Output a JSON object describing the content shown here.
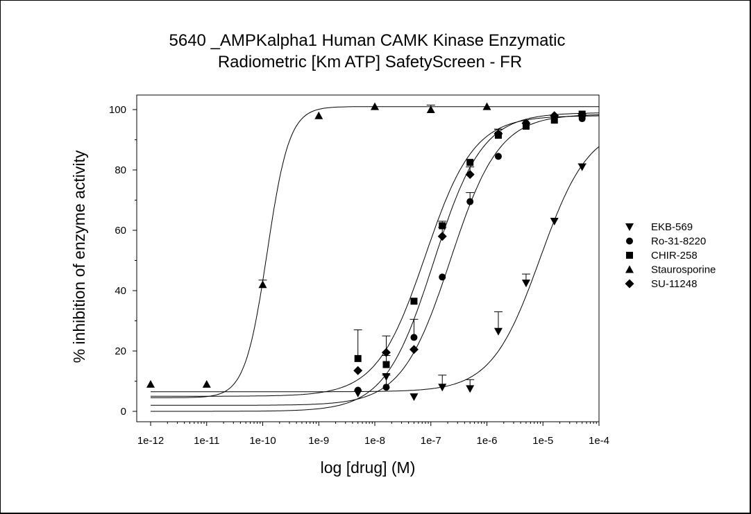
{
  "chart_data": {
    "type": "scatter",
    "title_lines": [
      "5640 _AMPKalpha1 Human CAMK Kinase Enzymatic",
      "Radiometric [Km ATP] SafetyScreen - FR"
    ],
    "xlabel": "log [drug] (M)",
    "ylabel": "% inhibition of enzyme activity",
    "x_scale": "log",
    "xlim": [
      1e-12,
      0.0001
    ],
    "ylim": [
      -3,
      105
    ],
    "x_ticks": [
      1e-12,
      1e-11,
      1e-10,
      1e-09,
      1e-08,
      1e-07,
      1e-06,
      1e-05,
      0.0001
    ],
    "x_tick_labels": [
      "1e-12",
      "1e-11",
      "1e-10",
      "1e-9",
      "1e-8",
      "1e-7",
      "1e-6",
      "1e-5",
      "1e-4"
    ],
    "y_ticks": [
      0,
      20,
      40,
      60,
      80,
      100
    ],
    "y_tick_labels": [
      "0",
      "20",
      "40",
      "60",
      "80",
      "100"
    ],
    "grid": false,
    "legend_position": "right",
    "series": [
      {
        "name": "EKB-569",
        "marker": "triangle-down",
        "points": [
          {
            "x": 5e-09,
            "y": 6,
            "err": 0
          },
          {
            "x": 1.6e-08,
            "y": 11.5,
            "err": 0
          },
          {
            "x": 5e-08,
            "y": 4.8,
            "err": 0
          },
          {
            "x": 1.6e-07,
            "y": 8,
            "err": 4
          },
          {
            "x": 5e-07,
            "y": 7.5,
            "err": 3
          },
          {
            "x": 1.6e-06,
            "y": 26.5,
            "err": 6.5
          },
          {
            "x": 5e-06,
            "y": 42.5,
            "err": 3
          },
          {
            "x": 1.6e-05,
            "y": 63,
            "err": 0
          },
          {
            "x": 5e-05,
            "y": 81,
            "err": 1
          }
        ],
        "fit": {
          "bottom": 6.5,
          "top": 95,
          "log_ec50": -5.05,
          "hill": 1.0
        }
      },
      {
        "name": "Ro-31-8220",
        "marker": "circle",
        "points": [
          {
            "x": 5e-09,
            "y": 7,
            "err": 0
          },
          {
            "x": 1.6e-08,
            "y": 8,
            "err": 4
          },
          {
            "x": 5e-08,
            "y": 24.5,
            "err": 6
          },
          {
            "x": 1.6e-07,
            "y": 44.5,
            "err": 0
          },
          {
            "x": 5e-07,
            "y": 69.5,
            "err": 3
          },
          {
            "x": 1.6e-06,
            "y": 84.5,
            "err": 0
          },
          {
            "x": 5e-06,
            "y": 95.5,
            "err": 0
          },
          {
            "x": 1.6e-05,
            "y": 97.5,
            "err": 0
          },
          {
            "x": 5e-05,
            "y": 97,
            "err": 1.5
          }
        ],
        "fit": {
          "bottom": 2,
          "top": 98.5,
          "log_ec50": -6.65,
          "hill": 1.0
        }
      },
      {
        "name": "CHIR-258",
        "marker": "square",
        "points": [
          {
            "x": 5e-09,
            "y": 17.5,
            "err": 9.5
          },
          {
            "x": 1.6e-08,
            "y": 15.5,
            "err": 3
          },
          {
            "x": 5e-08,
            "y": 36.5,
            "err": 0
          },
          {
            "x": 1.6e-07,
            "y": 61.5,
            "err": 1.5
          },
          {
            "x": 5e-07,
            "y": 82.5,
            "err": 0
          },
          {
            "x": 1.6e-06,
            "y": 91.5,
            "err": 2
          },
          {
            "x": 5e-06,
            "y": 94.5,
            "err": 0
          },
          {
            "x": 1.6e-05,
            "y": 96.5,
            "err": 0
          },
          {
            "x": 5e-05,
            "y": 98.5,
            "err": 0
          }
        ],
        "fit": {
          "bottom": 5,
          "top": 98,
          "log_ec50": -7.1,
          "hill": 1.0
        }
      },
      {
        "name": "Staurosporine",
        "marker": "triangle-up",
        "points": [
          {
            "x": 1e-12,
            "y": 9,
            "err": 0
          },
          {
            "x": 1e-11,
            "y": 9,
            "err": 0
          },
          {
            "x": 1e-10,
            "y": 42,
            "err": 1.5
          },
          {
            "x": 1e-09,
            "y": 98,
            "err": 0
          },
          {
            "x": 1e-08,
            "y": 101,
            "err": 0
          },
          {
            "x": 1e-07,
            "y": 100,
            "err": 1.5
          },
          {
            "x": 1e-06,
            "y": 101,
            "err": 0
          }
        ],
        "fit": {
          "bottom": 4.5,
          "top": 101,
          "log_ec50": -9.92,
          "hill": 2.2
        }
      },
      {
        "name": "SU-11248",
        "marker": "diamond",
        "points": [
          {
            "x": 5e-09,
            "y": 13.5,
            "err": 0
          },
          {
            "x": 1.6e-08,
            "y": 19.5,
            "err": 5.5
          },
          {
            "x": 5e-08,
            "y": 20.5,
            "err": 0
          },
          {
            "x": 1.6e-07,
            "y": 58,
            "err": 3
          },
          {
            "x": 5e-07,
            "y": 78.5,
            "err": 2.5
          },
          {
            "x": 1.6e-06,
            "y": 92,
            "err": 1.5
          },
          {
            "x": 5e-06,
            "y": 95.5,
            "err": 0
          },
          {
            "x": 1.6e-05,
            "y": 98,
            "err": 0
          },
          {
            "x": 5e-05,
            "y": 98,
            "err": 0
          }
        ],
        "fit": {
          "bottom": 0,
          "top": 99,
          "log_ec50": -6.95,
          "hill": 1.0
        }
      }
    ]
  }
}
